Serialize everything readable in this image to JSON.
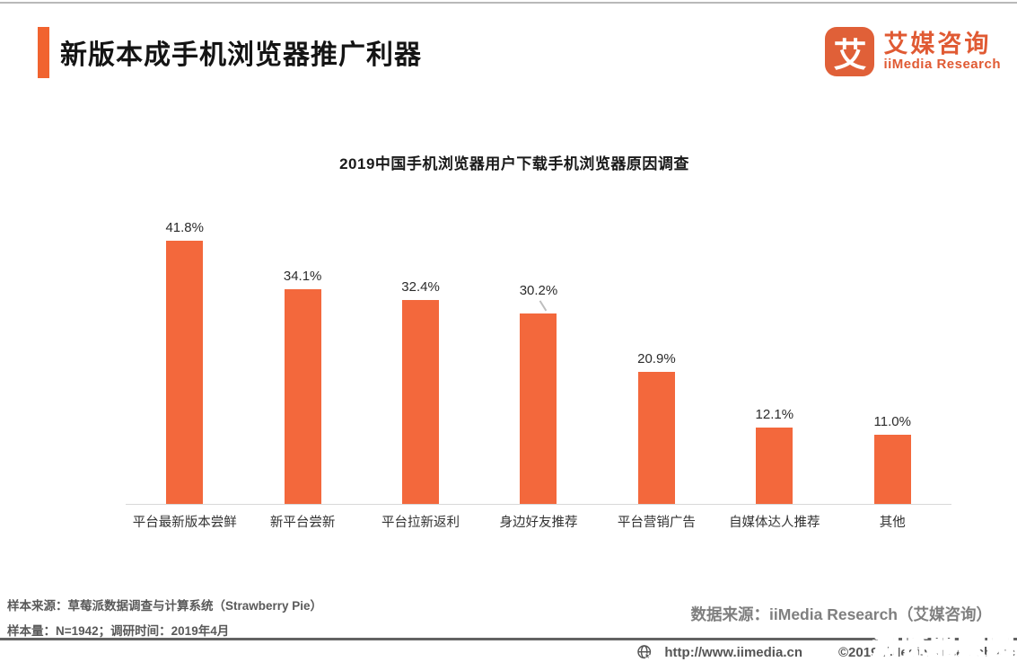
{
  "header": {
    "title": "新版本成手机浏览器推广利器"
  },
  "logo": {
    "glyph": "艾",
    "name_cn": "艾媒咨询",
    "name_en": "iiMedia Research"
  },
  "chart_data": {
    "type": "bar",
    "title": "2019中国手机浏览器用户下载手机浏览器原因调查",
    "categories": [
      "平台最新版本尝鲜",
      "新平台尝新",
      "平台拉新返利",
      "身边好友推荐",
      "平台营销广告",
      "自媒体达人推荐",
      "其他"
    ],
    "values": [
      41.8,
      34.1,
      32.4,
      30.2,
      20.9,
      12.1,
      11.0
    ],
    "value_labels": [
      "41.8%",
      "34.1%",
      "32.4%",
      "30.2%",
      "20.9%",
      "12.1%",
      "11.0%"
    ],
    "unit": "%",
    "xlabel": "",
    "ylabel": "",
    "ylim": [
      0,
      47
    ],
    "grid": false,
    "legend": "none",
    "bar_color": "#F3683C",
    "callout_index": 3
  },
  "footnotes": {
    "sample_source": "样本来源：草莓派数据调查与计算系统（Strawberry Pie）",
    "sample_size": "样本量：N=1942；调研时间：2019年4月"
  },
  "data_source": "数据来源：iiMedia Research（艾媒咨询）",
  "footer": {
    "url": "http://www.iimedia.cn",
    "copyright": "©2019 iiMedia Research Inc",
    "globe_icon": "globe-cursor-icon"
  },
  "watermark": "浏览器家园",
  "colors": {
    "accent_orange": "#F1632F",
    "bar_orange": "#F3683C",
    "logo_orange": "#E05A33",
    "watermark_green": "#1E9B33",
    "footnote_gray": "#595959",
    "data_source_gray": "#7F7F7F",
    "axis_gray": "#D9D9D9"
  }
}
